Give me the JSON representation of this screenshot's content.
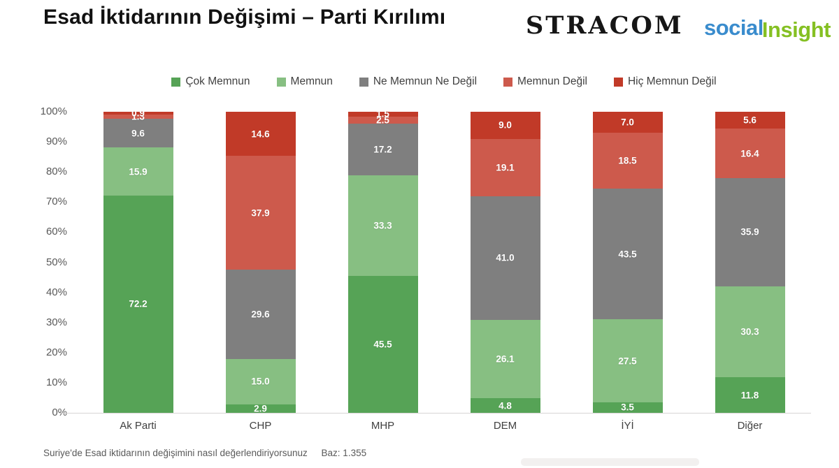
{
  "header": {
    "title": "Esad İktidarının Değişimi – Parti Kırılımı",
    "logo_stracom": "STRACOM",
    "logo_social_part1": "social",
    "logo_social_part2": "Insight"
  },
  "footer": {
    "question": "Suriye'de Esad iktidarının değişimini nasıl değerlendiriyorsunuz",
    "base": "Baz: 1.355"
  },
  "chart_data": {
    "type": "bar",
    "stacked": true,
    "percent": true,
    "title": "Esad İktidarının Değişimi – Parti Kırılımı",
    "categories": [
      "Ak Parti",
      "CHP",
      "MHP",
      "DEM",
      "İYİ",
      "Diğer"
    ],
    "series": [
      {
        "name": "Çok Memnun",
        "color": "#56a356",
        "values": [
          72.2,
          2.9,
          45.5,
          4.8,
          3.5,
          11.8
        ]
      },
      {
        "name": "Memnun",
        "color": "#87bf82",
        "values": [
          15.9,
          15.0,
          33.3,
          26.1,
          27.5,
          30.3
        ]
      },
      {
        "name": "Ne Memnun Ne Değil",
        "color": "#7f7f7f",
        "values": [
          9.6,
          29.6,
          17.2,
          41.0,
          43.5,
          35.9
        ]
      },
      {
        "name": "Memnun Değil",
        "color": "#cd5a4c",
        "values": [
          1.3,
          37.9,
          2.5,
          19.1,
          18.5,
          16.4
        ]
      },
      {
        "name": "Hiç Memnun Değil",
        "color": "#c13a28",
        "values": [
          0.9,
          14.6,
          1.5,
          9.0,
          7.0,
          5.6
        ]
      }
    ],
    "y_ticks": [
      "0%",
      "10%",
      "20%",
      "30%",
      "40%",
      "50%",
      "60%",
      "70%",
      "80%",
      "90%",
      "100%"
    ],
    "ylim": [
      0,
      100
    ],
    "grid": false,
    "legend_position": "top",
    "label_decimals": 1
  }
}
